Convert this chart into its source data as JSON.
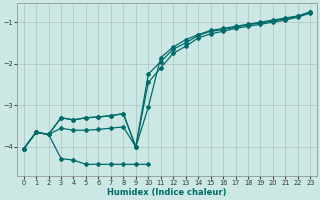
{
  "xlabel": "Humidex (Indice chaleur)",
  "bg_color": "#cce8e4",
  "grid_color": "#999999",
  "line_color": "#006b6b",
  "xlim": [
    -0.5,
    23.5
  ],
  "ylim": [
    -4.7,
    -0.55
  ],
  "yticks": [
    -4,
    -3,
    -2,
    -1
  ],
  "xticks": [
    0,
    1,
    2,
    3,
    4,
    5,
    6,
    7,
    8,
    9,
    10,
    11,
    12,
    13,
    14,
    15,
    16,
    17,
    18,
    19,
    20,
    21,
    22,
    23
  ],
  "line1_x": [
    0,
    1,
    2,
    3,
    4,
    5,
    6,
    7,
    8,
    9,
    10,
    11,
    12,
    13,
    14,
    15,
    16,
    17,
    18,
    19,
    20,
    21,
    22,
    23
  ],
  "line1_y": [
    -4.05,
    -3.65,
    -3.7,
    -3.3,
    -3.35,
    -3.3,
    -3.28,
    -3.25,
    -3.2,
    -4.0,
    -2.45,
    -2.1,
    -1.75,
    -1.58,
    -1.38,
    -1.28,
    -1.22,
    -1.15,
    -1.1,
    -1.05,
    -1.0,
    -0.95,
    -0.88,
    -0.78
  ],
  "line2_x": [
    0,
    1,
    2,
    3,
    4,
    5,
    6,
    7,
    8,
    9,
    10,
    11,
    12,
    13,
    14,
    15,
    16,
    17,
    18,
    19,
    20,
    21,
    22,
    23
  ],
  "line2_y": [
    -4.05,
    -3.65,
    -3.7,
    -3.3,
    -3.35,
    -3.3,
    -3.28,
    -3.25,
    -3.2,
    -4.0,
    -3.05,
    -1.85,
    -1.6,
    -1.42,
    -1.3,
    -1.2,
    -1.15,
    -1.1,
    -1.05,
    -1.0,
    -0.95,
    -0.9,
    -0.85,
    -0.75
  ],
  "line3_x": [
    0,
    1,
    2,
    3,
    4,
    5,
    6,
    7,
    8,
    9,
    10,
    11,
    12,
    13,
    14,
    15,
    16,
    17,
    18,
    19,
    20,
    21,
    22,
    23
  ],
  "line3_y": [
    -4.05,
    -3.65,
    -3.7,
    -3.55,
    -3.6,
    -3.6,
    -3.58,
    -3.55,
    -3.52,
    -4.0,
    -2.25,
    -1.95,
    -1.65,
    -1.5,
    -1.32,
    -1.22,
    -1.18,
    -1.12,
    -1.06,
    -1.02,
    -0.97,
    -0.92,
    -0.86,
    -0.76
  ],
  "line4_x": [
    0,
    1,
    2,
    3,
    4,
    5,
    6,
    7,
    8,
    9,
    10
  ],
  "line4_y": [
    -4.05,
    -3.65,
    -3.7,
    -4.28,
    -4.32,
    -4.42,
    -4.42,
    -4.42,
    -4.42,
    -4.42,
    -4.42
  ]
}
